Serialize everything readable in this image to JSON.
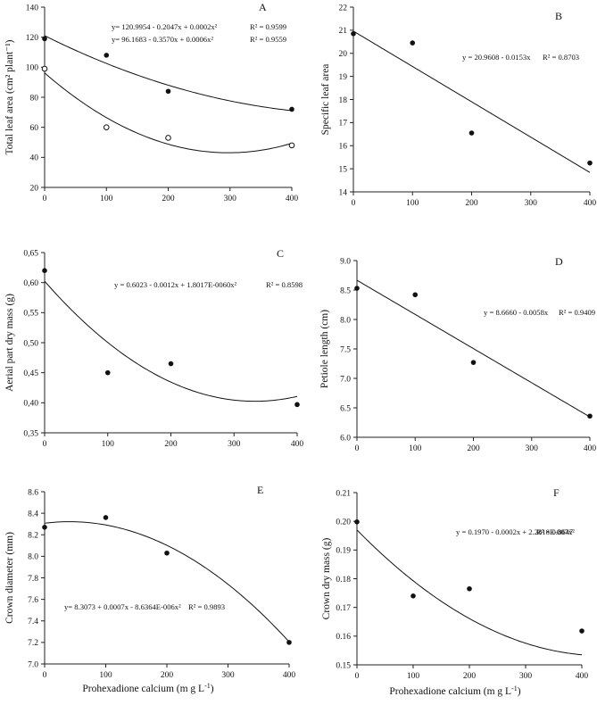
{
  "figure": {
    "xlabel_text": "Prohexadione calcium (m g L",
    "xlabel_sup": "-1",
    "xlabel_close": ")"
  },
  "chart_data": [
    {
      "id": "A",
      "type": "scatter",
      "panel_label": "A",
      "ylabel": "Total leaf area (cm² plant⁻¹)",
      "xlim": [
        0,
        400
      ],
      "ylim": [
        20,
        140
      ],
      "xticks": [
        0,
        100,
        200,
        300,
        400
      ],
      "yticks": [
        20,
        40,
        60,
        80,
        100,
        120,
        140
      ],
      "yticklabels": [
        "20",
        "40",
        "60",
        "80",
        "100",
        "120",
        "140"
      ],
      "series": [
        {
          "marker": "filled",
          "x": [
            0,
            100,
            200,
            400
          ],
          "y": [
            119,
            108,
            84,
            72
          ],
          "fit": [
            120.9954,
            -0.2047,
            0.0002
          ],
          "equation": "y= 120.9954 - 0.2047x + 0.0002x²",
          "r2": "R² = 0.9599"
        },
        {
          "marker": "open",
          "x": [
            0,
            100,
            200,
            400
          ],
          "y": [
            99,
            60,
            53,
            48
          ],
          "fit": [
            96.1683,
            -0.357,
            0.0006
          ],
          "equation": "y= 96.1683 - 0.3570x + 0.0006x²",
          "r2": "R² = 0.9559"
        }
      ]
    },
    {
      "id": "B",
      "type": "scatter",
      "panel_label": "B",
      "ylabel": "Specific leaf area",
      "xlim": [
        0,
        400
      ],
      "ylim": [
        14,
        22
      ],
      "xticks": [
        0,
        100,
        200,
        300,
        400
      ],
      "yticks": [
        14,
        15,
        16,
        17,
        18,
        19,
        20,
        21,
        22
      ],
      "yticklabels": [
        "14",
        "15",
        "16",
        "17",
        "18",
        "19",
        "20",
        "21",
        "22"
      ],
      "series": [
        {
          "marker": "filled",
          "x": [
            0,
            100,
            200,
            400
          ],
          "y": [
            20.85,
            20.45,
            16.55,
            15.25
          ],
          "fit": [
            20.9608,
            -0.0153,
            0
          ],
          "equation": "y = 20.9608 - 0.0153x",
          "r2": "R² = 0.8703"
        }
      ]
    },
    {
      "id": "C",
      "type": "scatter",
      "panel_label": "C",
      "ylabel": "Aerial part dry mass (g)",
      "xlim": [
        0,
        400
      ],
      "ylim": [
        0.35,
        0.65
      ],
      "xticks": [
        0,
        100,
        200,
        300,
        400
      ],
      "yticks": [
        0.35,
        0.4,
        0.45,
        0.5,
        0.55,
        0.6,
        0.65
      ],
      "yticklabels": [
        "0,35",
        "0,40",
        "0,45",
        "0,50",
        "0,55",
        "0,60",
        "0,65"
      ],
      "series": [
        {
          "marker": "filled",
          "x": [
            0,
            100,
            200,
            400
          ],
          "y": [
            0.62,
            0.45,
            0.465,
            0.397
          ],
          "fit": [
            0.6023,
            -0.0012,
            1.8017e-06
          ],
          "equation": "y = 0.6023 - 0.0012x + 1.8017E-0060x²",
          "r2": "R² = 0.8598"
        }
      ]
    },
    {
      "id": "D",
      "type": "scatter",
      "panel_label": "D",
      "ylabel": "Petiole length (cm)",
      "xlim": [
        0,
        400
      ],
      "ylim": [
        6.0,
        9.0
      ],
      "xticks": [
        0,
        100,
        200,
        300,
        400
      ],
      "yticks": [
        6.0,
        6.5,
        7.0,
        7.5,
        8.0,
        8.5,
        9.0
      ],
      "yticklabels": [
        "6.0",
        "6.5",
        "7.0",
        "7.5",
        "8.0",
        "8.5",
        "9.0"
      ],
      "series": [
        {
          "marker": "filled",
          "x": [
            0,
            100,
            200,
            400
          ],
          "y": [
            8.53,
            8.42,
            7.27,
            6.36
          ],
          "fit": [
            8.666,
            -0.0058,
            0
          ],
          "equation": "y = 8.6660 - 0.0058x",
          "r2": "R² = 0.9409"
        }
      ]
    },
    {
      "id": "E",
      "type": "scatter",
      "panel_label": "E",
      "ylabel": "Crown diameter (mm)",
      "xlim": [
        0,
        400
      ],
      "ylim": [
        7.0,
        8.6
      ],
      "xticks": [
        0,
        100,
        200,
        300,
        400
      ],
      "yticks": [
        7.0,
        7.2,
        7.4,
        7.6,
        7.8,
        8.0,
        8.2,
        8.4,
        8.6
      ],
      "yticklabels": [
        "7.0",
        "7.2",
        "7.4",
        "7.6",
        "7.8",
        "8.0",
        "8.2",
        "8.4",
        "8.6"
      ],
      "series": [
        {
          "marker": "filled",
          "x": [
            0,
            100,
            200,
            400
          ],
          "y": [
            8.27,
            8.36,
            8.03,
            7.2
          ],
          "fit": [
            8.3073,
            0.0007,
            -8.6364e-06
          ],
          "equation": "y= 8.3073 + 0.0007x - 8.6364E-006x²",
          "r2": "R² = 0.9893"
        }
      ]
    },
    {
      "id": "F",
      "type": "scatter",
      "panel_label": "F",
      "ylabel": "Crown dry mass (g)",
      "xlim": [
        0,
        400
      ],
      "ylim": [
        0.15,
        0.21
      ],
      "xticks": [
        0,
        100,
        200,
        300,
        400
      ],
      "yticks": [
        0.15,
        0.16,
        0.17,
        0.18,
        0.19,
        0.2,
        0.21
      ],
      "yticklabels": [
        "0.15",
        "0.16",
        "0.17",
        "0.18",
        "0.19",
        "0.20",
        "0.21"
      ],
      "series": [
        {
          "marker": "filled",
          "x": [
            0,
            100,
            200,
            400
          ],
          "y": [
            0.1998,
            0.174,
            0.1765,
            0.1618
          ],
          "fit": [
            0.197,
            -0.0002,
            2.2818e-07
          ],
          "equation": "y = 0.1970 - 0.0002x + 2.2818E-007x²",
          "r2": "R² = 0.8647"
        }
      ]
    }
  ]
}
